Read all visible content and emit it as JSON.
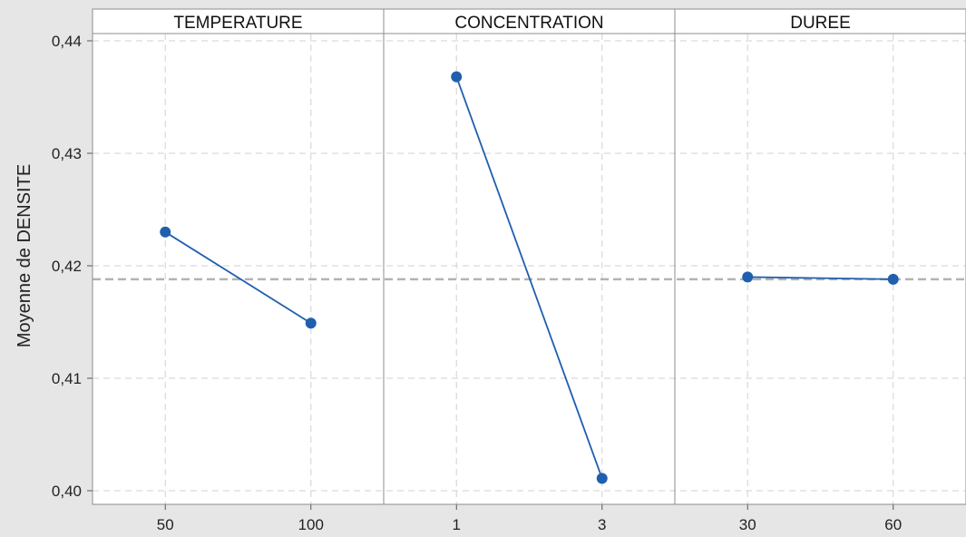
{
  "chart_data": {
    "type": "line",
    "ylabel": "Moyenne de DENSITE",
    "ylim": [
      0.4,
      0.4415
    ],
    "yticks": [
      0.4,
      0.41,
      0.42,
      0.43,
      0.44
    ],
    "ytick_labels": [
      "0,40",
      "0,41",
      "0,42",
      "0,43",
      "0,44"
    ],
    "reference_mean": 0.4188,
    "grid": true,
    "colors": {
      "series": "#1f5fae",
      "plot_background": "#ffffff",
      "outer_background": "#e6e6e6",
      "grid": "#d9d9d9",
      "reference_line": "#b3b3b3",
      "panel_border": "#8c8c8c"
    },
    "panels": [
      {
        "title": "TEMPERATURE",
        "categories": [
          "50",
          "100"
        ],
        "values": [
          0.423,
          0.4149
        ]
      },
      {
        "title": "CONCENTRATION",
        "categories": [
          "1",
          "3"
        ],
        "values": [
          0.4368,
          0.4011
        ]
      },
      {
        "title": "DUREE",
        "categories": [
          "30",
          "60"
        ],
        "values": [
          0.419,
          0.4188
        ]
      }
    ]
  }
}
